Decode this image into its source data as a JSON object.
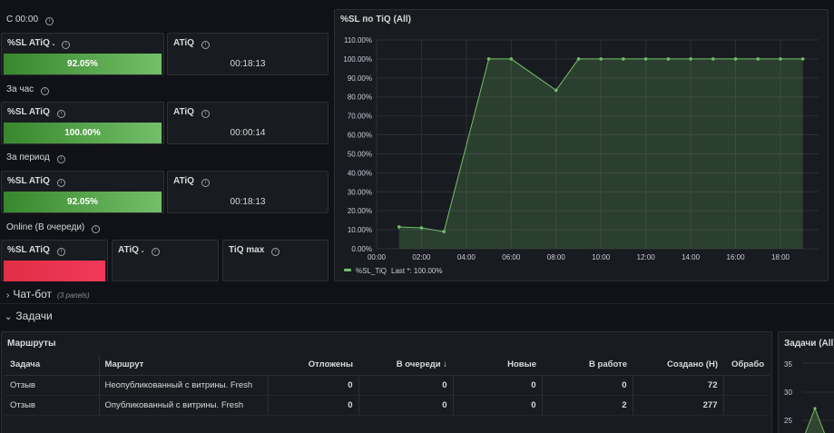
{
  "stats": {
    "since_label": "С 00:00",
    "hour_label": "За час",
    "period_label": "За период",
    "online_label": "Online (В очереди)",
    "since": {
      "sl_title": "%SL ATiQ .",
      "sl_value": "92.05%",
      "atiq_title": "ATiQ",
      "atiq_value": "00:18:13"
    },
    "hour": {
      "sl_title": "%SL ATiQ",
      "sl_value": "100.00%",
      "atiq_title": "ATiQ",
      "atiq_value": "00:00:14"
    },
    "period": {
      "sl_title": "%SL ATiQ",
      "sl_value": "92.05%",
      "atiq_title": "ATiQ",
      "atiq_value": "00:18:13"
    },
    "online": {
      "sl_title": "%SL ATiQ",
      "atiq_title": "ATiQ .",
      "tiqmax_title": "TiQ max"
    },
    "info_glyph": "i"
  },
  "colors": {
    "green": "#73bf69",
    "red": "#f2385a",
    "panel_bg": "#181b1f"
  },
  "chart_data": {
    "type": "area",
    "title": "%SL по TiQ (All)",
    "x": [
      "01:00",
      "02:00",
      "03:00",
      "05:00",
      "06:00",
      "08:00",
      "09:00",
      "10:00",
      "11:00",
      "12:00",
      "13:00",
      "14:00",
      "15:00",
      "16:00",
      "17:00",
      "18:00",
      "19:00"
    ],
    "series": [
      {
        "name": "%SL_TiQ",
        "values": [
          11.5,
          11,
          9,
          100,
          100,
          83.5,
          100,
          100,
          100,
          100,
          100,
          100,
          100,
          100,
          100,
          100,
          100
        ]
      }
    ],
    "xticks": [
      "00:00",
      "02:00",
      "04:00",
      "06:00",
      "08:00",
      "10:00",
      "12:00",
      "14:00",
      "16:00",
      "18:00"
    ],
    "yticks": [
      "0.00%",
      "10.00%",
      "20.00%",
      "30.00%",
      "40.00%",
      "50.00%",
      "60.00%",
      "70.00%",
      "80.00%",
      "90.00%",
      "100.00%",
      "110.00%"
    ],
    "ylim": [
      0,
      110
    ],
    "legend_last": "Last *: 100.00%",
    "legend": "bottom-left",
    "grid": true
  },
  "rows": {
    "chatbot_label": "Чат-бот",
    "chatbot_panels": "(3 panels)",
    "tasks_label": "Задачи",
    "collapsed_glyph": "›",
    "expanded_glyph": "⌄"
  },
  "routes": {
    "title": "Маршруты",
    "columns": [
      "Задача",
      "Маршрут",
      "Отложены",
      "В очереди",
      "Новые",
      "В работе",
      "Создано (Н)",
      "Обрабо"
    ],
    "sort_glyph": "↓",
    "rows": [
      [
        "Отзыв",
        "Неопубликованный с витрины. Fresh",
        "0",
        "0",
        "0",
        "0",
        "72",
        ""
      ],
      [
        "Отзыв",
        "Опубликованный с витрины. Fresh",
        "0",
        "0",
        "0",
        "2",
        "277",
        ""
      ]
    ]
  },
  "tasks_chart": {
    "title": "Задачи (All)",
    "yticks": [
      "35",
      "30",
      "25"
    ]
  }
}
